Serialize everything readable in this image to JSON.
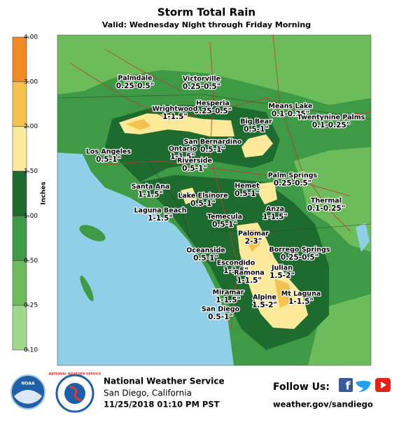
{
  "header": {
    "title": "Storm Total Rain",
    "subtitle": "Valid: Wednesday Night through Friday Morning"
  },
  "legend": {
    "title": "Inches",
    "ticks": [
      {
        "value": 4,
        "label": "4.00"
      },
      {
        "value": 3,
        "label": "3.00"
      },
      {
        "value": 2,
        "label": "2.00"
      },
      {
        "value": 1.5,
        "label": "1.50"
      },
      {
        "value": 1,
        "label": "1.00"
      },
      {
        "value": 0.5,
        "label": "0.50"
      },
      {
        "value": 0.25,
        "label": "0.25"
      },
      {
        "value": 0.1,
        "label": "0.10"
      }
    ],
    "colors": [
      "#f08a24",
      "#f5c14f",
      "#fce99a",
      "#1e6b30",
      "#3f9a46",
      "#6cbc5c",
      "#9fd88a"
    ]
  },
  "places": [
    {
      "name": "Palmdale",
      "amount": "0.25-0.5\""
    },
    {
      "name": "Victorville",
      "amount": "0.25-0.5\""
    },
    {
      "name": "Hesperia",
      "amount": "0.25-0.5\""
    },
    {
      "name": "Wrightwood",
      "amount": "1-1.5\""
    },
    {
      "name": "Means Lake",
      "amount": "0.1-0.25\""
    },
    {
      "name": "Twentynine Palms",
      "amount": "0.1-0.25\""
    },
    {
      "name": "Big Bear",
      "amount": "0.5-1\""
    },
    {
      "name": "San Bernardino",
      "amount": "0.5-1\""
    },
    {
      "name": "Ontario",
      "amount": "1-1.5\""
    },
    {
      "name": "Los Angeles",
      "amount": "0.5-1\""
    },
    {
      "name": "Riverside",
      "amount": "0.5-1\""
    },
    {
      "name": "Palm Springs",
      "amount": "0.25-0.5\""
    },
    {
      "name": "Santa Ana",
      "amount": "1-1.5\""
    },
    {
      "name": "Hemet",
      "amount": "0.5-1\""
    },
    {
      "name": "Lake Elsinore",
      "amount": "0.5-1\""
    },
    {
      "name": "Thermal",
      "amount": "0.1-0.25\""
    },
    {
      "name": "Laguna Beach",
      "amount": "1-1.5\""
    },
    {
      "name": "Anza",
      "amount": "1-1.5\""
    },
    {
      "name": "Temecula",
      "amount": "0.5-1\""
    },
    {
      "name": "Palomar",
      "amount": "2-3\""
    },
    {
      "name": "Oceanside",
      "amount": "0.5-1\""
    },
    {
      "name": "Borrego Springs",
      "amount": "0.25-0.5\""
    },
    {
      "name": "Escondido",
      "amount": "1-1.5\""
    },
    {
      "name": "Ramona",
      "amount": "1-1.5\""
    },
    {
      "name": "Julian",
      "amount": "1.5-2\""
    },
    {
      "name": "Miramar",
      "amount": "1-1.5\""
    },
    {
      "name": "Mt Laguna",
      "amount": "1-1.5\""
    },
    {
      "name": "Alpine",
      "amount": "1.5-2\""
    },
    {
      "name": "San Diego",
      "amount": "0.5-1\""
    }
  ],
  "footer": {
    "logo_noaa": "NOAA",
    "logo_nws": "NATIONAL WEATHER SERVICE",
    "agency": "National Weather Service",
    "office": "San Diego, California",
    "timestamp": "11/25/2018 01:10 PM PST",
    "follow": "Follow Us:",
    "url": "weather.gov/sandiego"
  }
}
